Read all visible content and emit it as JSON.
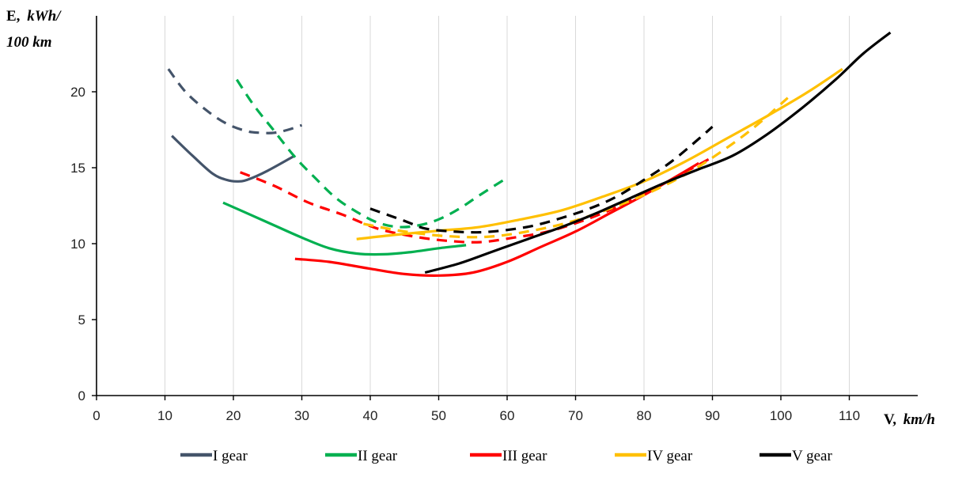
{
  "chart_data": {
    "type": "line",
    "xlabel": {
      "prefix": "V,",
      "unit": "km/h"
    },
    "ylabel": {
      "prefix": "E,",
      "unit_line1": "kWh/",
      "unit_line2": "100 km"
    },
    "xlim": [
      0,
      120
    ],
    "ylim": [
      0,
      25
    ],
    "xticks": [
      0,
      10,
      20,
      30,
      40,
      50,
      60,
      70,
      80,
      90,
      100,
      110
    ],
    "yticks": [
      0,
      5,
      10,
      15,
      20
    ],
    "grid": "vertical",
    "legend_position": "bottom",
    "legend": [
      {
        "label": "I gear",
        "color": "#44546a"
      },
      {
        "label": "II gear",
        "color": "#00b050"
      },
      {
        "label": "III gear",
        "color": "#ff0000"
      },
      {
        "label": "IV gear",
        "color": "#ffc000"
      },
      {
        "label": "V gear",
        "color": "#000000"
      }
    ],
    "series": [
      {
        "gear": "I",
        "style": "solid",
        "color": "#44546a",
        "x": [
          11,
          14,
          17,
          19,
          20.5,
          22,
          25,
          29
        ],
        "y": [
          17.1,
          15.8,
          14.6,
          14.2,
          14.1,
          14.2,
          14.8,
          15.8
        ]
      },
      {
        "gear": "I",
        "style": "dashed",
        "color": "#44546a",
        "x": [
          10.5,
          13,
          16,
          19,
          22,
          24,
          26,
          28,
          30
        ],
        "y": [
          21.5,
          20.0,
          18.8,
          17.9,
          17.4,
          17.3,
          17.3,
          17.5,
          17.8
        ]
      },
      {
        "gear": "II",
        "style": "solid",
        "color": "#00b050",
        "x": [
          18.5,
          22,
          26,
          30,
          34,
          38,
          42,
          46,
          50,
          54
        ],
        "y": [
          12.7,
          12.0,
          11.2,
          10.4,
          9.7,
          9.35,
          9.3,
          9.45,
          9.7,
          9.9
        ]
      },
      {
        "gear": "II",
        "style": "dashed",
        "color": "#00b050",
        "x": [
          20.5,
          23,
          26,
          29,
          32,
          35,
          38,
          41,
          44,
          47,
          50,
          53,
          56,
          59.5
        ],
        "y": [
          20.8,
          19.1,
          17.4,
          15.7,
          14.3,
          13.0,
          12.1,
          11.4,
          11.1,
          11.2,
          11.6,
          12.3,
          13.2,
          14.2
        ]
      },
      {
        "gear": "III",
        "style": "solid",
        "color": "#ff0000",
        "x": [
          29,
          34,
          40,
          45,
          50,
          55,
          60,
          65,
          70,
          75,
          80,
          85,
          88
        ],
        "y": [
          9.0,
          8.8,
          8.35,
          8.0,
          7.9,
          8.1,
          8.8,
          9.8,
          10.8,
          12.0,
          13.2,
          14.5,
          15.3
        ]
      },
      {
        "gear": "III",
        "style": "dashed",
        "color": "#ff0000",
        "x": [
          21,
          26,
          31,
          36,
          41,
          46,
          51,
          56,
          61,
          66,
          71,
          76,
          81,
          86,
          90
        ],
        "y": [
          14.7,
          13.8,
          12.7,
          11.9,
          11.0,
          10.5,
          10.2,
          10.1,
          10.4,
          10.8,
          11.5,
          12.4,
          13.5,
          14.7,
          15.7
        ]
      },
      {
        "gear": "IV",
        "style": "solid",
        "color": "#ffc000",
        "x": [
          38,
          44,
          50,
          56,
          62,
          68,
          74,
          80,
          86,
          92,
          98,
          104,
          109
        ],
        "y": [
          10.3,
          10.6,
          10.85,
          11.1,
          11.6,
          12.2,
          13.1,
          14.1,
          15.4,
          16.9,
          18.4,
          20.0,
          21.5
        ]
      },
      {
        "gear": "IV",
        "style": "dashed",
        "color": "#ffc000",
        "x": [
          39,
          45,
          51,
          57,
          63,
          69,
          75,
          81,
          87,
          93,
          97,
          101
        ],
        "y": [
          11.3,
          10.8,
          10.5,
          10.45,
          10.8,
          11.4,
          12.3,
          13.4,
          14.8,
          16.6,
          18.0,
          19.6
        ]
      },
      {
        "gear": "V",
        "style": "solid",
        "color": "#000000",
        "x": [
          48,
          53,
          58,
          63,
          68,
          73,
          78,
          83,
          88,
          93,
          98,
          103,
          108,
          112,
          116
        ],
        "y": [
          8.1,
          8.7,
          9.5,
          10.3,
          11.1,
          12.0,
          13.0,
          14.0,
          14.9,
          15.8,
          17.2,
          18.9,
          20.8,
          22.5,
          23.9
        ]
      },
      {
        "gear": "V",
        "style": "dashed",
        "color": "#000000",
        "x": [
          40,
          45,
          48,
          52,
          56,
          60,
          64,
          68,
          72,
          76,
          80,
          84,
          88,
          90
        ],
        "y": [
          12.3,
          11.5,
          11.0,
          10.8,
          10.75,
          10.9,
          11.2,
          11.7,
          12.3,
          13.1,
          14.2,
          15.4,
          16.9,
          17.7
        ]
      }
    ]
  }
}
